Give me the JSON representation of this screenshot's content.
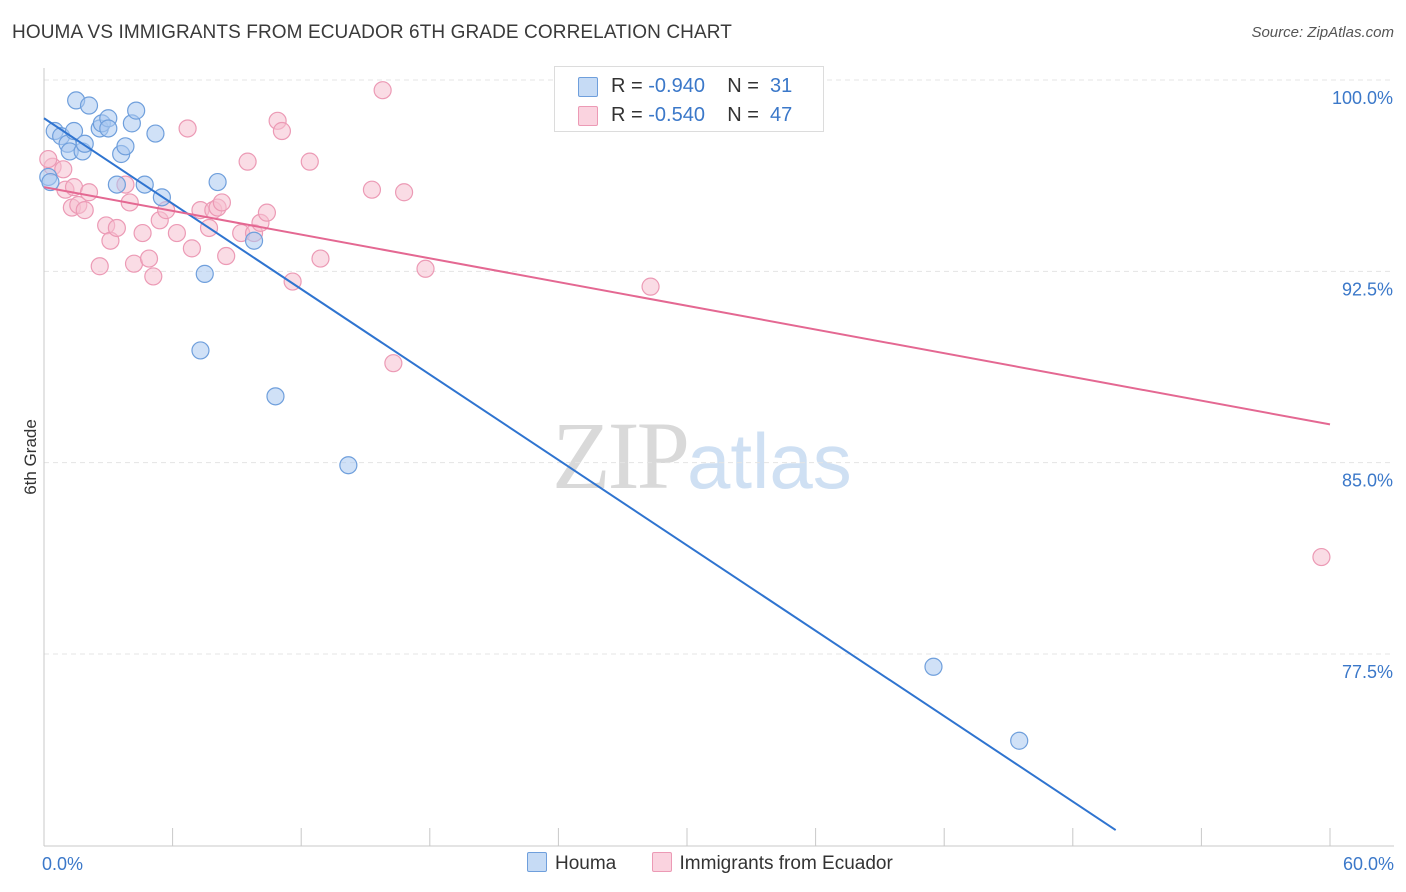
{
  "header": {
    "title": "HOUMA VS IMMIGRANTS FROM ECUADOR 6TH GRADE CORRELATION CHART",
    "source": "Source: ZipAtlas.com"
  },
  "watermark": {
    "zip": "ZIP",
    "atlas": "atlas"
  },
  "legend": {
    "houma": {
      "r_label": "R =",
      "r_value": "-0.940",
      "n_label": "N =",
      "n_value": "31"
    },
    "ecuador": {
      "r_label": "R =",
      "r_value": "-0.540",
      "n_label": "N =",
      "n_value": "47"
    }
  },
  "bottom_legend": {
    "houma": "Houma",
    "ecuador": "Immigrants from Ecuador"
  },
  "colors": {
    "houma_fill": "#aac8f0",
    "houma_stroke": "#6f9fdc",
    "houma_line": "#2f74d0",
    "ecuador_fill": "#f6bfd0",
    "ecuador_stroke": "#ec9ab5",
    "ecuador_line": "#e46892",
    "grid": "#e4e4e4",
    "tick_text": "#3b78c9"
  },
  "chart_data": {
    "type": "scatter",
    "title": "HOUMA VS IMMIGRANTS FROM ECUADOR 6TH GRADE CORRELATION CHART",
    "xlabel": "",
    "ylabel": "6th Grade",
    "xlim": [
      0,
      60
    ],
    "ylim": [
      70.6,
      100.7
    ],
    "x_tick_labels": [
      "0.0%",
      "60.0%"
    ],
    "y_ticks": [
      77.5,
      85.0,
      92.5,
      100.0
    ],
    "y_tick_labels": [
      "77.5%",
      "85.0%",
      "92.5%",
      "100.0%"
    ],
    "grid": true,
    "legend_position": "top-center",
    "series": [
      {
        "name": "Houma",
        "r": -0.94,
        "n": 31,
        "trend": {
          "x": [
            0.0,
            50.0
          ],
          "y": 98.5,
          "y_end": 70.6
        },
        "points": [
          [
            0.2,
            96.2
          ],
          [
            0.5,
            98.0
          ],
          [
            0.8,
            97.8
          ],
          [
            1.1,
            97.5
          ],
          [
            1.2,
            97.2
          ],
          [
            1.4,
            98.0
          ],
          [
            1.5,
            99.2
          ],
          [
            1.8,
            97.2
          ],
          [
            1.9,
            97.5
          ],
          [
            2.1,
            99.0
          ],
          [
            2.6,
            98.1
          ],
          [
            2.7,
            98.3
          ],
          [
            3.0,
            98.5
          ],
          [
            3.0,
            98.1
          ],
          [
            3.4,
            95.9
          ],
          [
            3.6,
            97.1
          ],
          [
            3.8,
            97.4
          ],
          [
            4.1,
            98.3
          ],
          [
            4.3,
            98.8
          ],
          [
            4.7,
            95.9
          ],
          [
            5.2,
            97.9
          ],
          [
            5.5,
            95.4
          ],
          [
            7.3,
            89.4
          ],
          [
            7.5,
            92.4
          ],
          [
            8.1,
            96.0
          ],
          [
            9.8,
            93.7
          ],
          [
            10.8,
            87.6
          ],
          [
            14.2,
            84.9
          ],
          [
            41.5,
            77.0
          ],
          [
            45.5,
            74.1
          ],
          [
            0.3,
            96.0
          ]
        ]
      },
      {
        "name": "Immigrants from Ecuador",
        "r": -0.54,
        "n": 47,
        "trend": {
          "x": [
            0.0,
            60.0
          ],
          "y": 95.8,
          "y_end": 86.5
        },
        "points": [
          [
            0.4,
            96.6
          ],
          [
            0.9,
            96.5
          ],
          [
            1.0,
            95.7
          ],
          [
            1.3,
            95.0
          ],
          [
            1.4,
            95.8
          ],
          [
            1.6,
            95.1
          ],
          [
            1.9,
            94.9
          ],
          [
            2.1,
            95.6
          ],
          [
            2.6,
            92.7
          ],
          [
            2.9,
            94.3
          ],
          [
            3.1,
            93.7
          ],
          [
            3.4,
            94.2
          ],
          [
            3.8,
            95.9
          ],
          [
            4.0,
            95.2
          ],
          [
            4.2,
            92.8
          ],
          [
            4.6,
            94.0
          ],
          [
            4.9,
            93.0
          ],
          [
            5.1,
            92.3
          ],
          [
            5.4,
            94.5
          ],
          [
            5.7,
            94.9
          ],
          [
            6.2,
            94.0
          ],
          [
            6.7,
            98.1
          ],
          [
            6.9,
            93.4
          ],
          [
            7.3,
            94.9
          ],
          [
            7.7,
            94.2
          ],
          [
            7.9,
            94.9
          ],
          [
            8.1,
            95.0
          ],
          [
            8.3,
            95.2
          ],
          [
            8.5,
            93.1
          ],
          [
            9.2,
            94.0
          ],
          [
            9.5,
            96.8
          ],
          [
            9.8,
            94.0
          ],
          [
            10.1,
            94.4
          ],
          [
            10.4,
            94.8
          ],
          [
            10.9,
            98.4
          ],
          [
            11.1,
            98.0
          ],
          [
            11.6,
            92.1
          ],
          [
            12.4,
            96.8
          ],
          [
            12.9,
            93.0
          ],
          [
            15.3,
            95.7
          ],
          [
            15.8,
            99.6
          ],
          [
            16.3,
            88.9
          ],
          [
            16.8,
            95.6
          ],
          [
            17.8,
            92.6
          ],
          [
            28.3,
            91.9
          ],
          [
            59.6,
            81.3
          ],
          [
            0.2,
            96.9
          ]
        ]
      }
    ]
  }
}
